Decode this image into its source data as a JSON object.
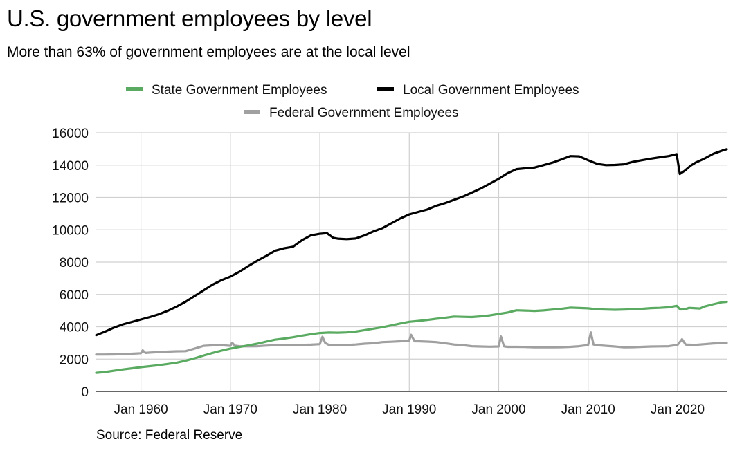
{
  "chart_data": {
    "type": "line",
    "title": "U.S. government employees by level",
    "subtitle": "More than 63% of government employees are at the local level",
    "source": "Source: Federal Reserve",
    "xlabel": "",
    "ylabel": "",
    "xlim": [
      1955.0,
      2025.5
    ],
    "ylim": [
      0,
      16000
    ],
    "yticks": [
      0,
      2000,
      4000,
      6000,
      8000,
      10000,
      12000,
      14000,
      16000
    ],
    "xticks": [
      {
        "value": 1960,
        "label": "Jan 1960"
      },
      {
        "value": 1970,
        "label": "Jan 1970"
      },
      {
        "value": 1980,
        "label": "Jan 1980"
      },
      {
        "value": 1990,
        "label": "Jan 1990"
      },
      {
        "value": 2000,
        "label": "Jan 2000"
      },
      {
        "value": 2010,
        "label": "Jan 2010"
      },
      {
        "value": 2020,
        "label": "Jan 2020"
      }
    ],
    "grid": true,
    "legend_position": "top-center",
    "series": [
      {
        "name": "State Government Employees",
        "color": "#5aab61",
        "points": [
          [
            1955.0,
            1150
          ],
          [
            1956,
            1200
          ],
          [
            1957,
            1280
          ],
          [
            1958,
            1360
          ],
          [
            1959,
            1430
          ],
          [
            1960,
            1500
          ],
          [
            1961,
            1560
          ],
          [
            1962,
            1620
          ],
          [
            1963,
            1700
          ],
          [
            1964,
            1780
          ],
          [
            1965,
            1900
          ],
          [
            1966,
            2050
          ],
          [
            1967,
            2220
          ],
          [
            1968,
            2380
          ],
          [
            1969,
            2520
          ],
          [
            1970,
            2650
          ],
          [
            1971,
            2750
          ],
          [
            1972,
            2850
          ],
          [
            1973,
            2950
          ],
          [
            1974,
            3080
          ],
          [
            1975,
            3200
          ],
          [
            1976,
            3270
          ],
          [
            1977,
            3350
          ],
          [
            1978,
            3450
          ],
          [
            1979,
            3540
          ],
          [
            1980,
            3610
          ],
          [
            1981,
            3640
          ],
          [
            1982,
            3630
          ],
          [
            1983,
            3650
          ],
          [
            1984,
            3700
          ],
          [
            1985,
            3790
          ],
          [
            1986,
            3880
          ],
          [
            1987,
            3970
          ],
          [
            1988,
            4080
          ],
          [
            1989,
            4200
          ],
          [
            1990,
            4310
          ],
          [
            1991,
            4360
          ],
          [
            1992,
            4420
          ],
          [
            1993,
            4490
          ],
          [
            1994,
            4550
          ],
          [
            1995,
            4630
          ],
          [
            1996,
            4610
          ],
          [
            1997,
            4600
          ],
          [
            1998,
            4640
          ],
          [
            1999,
            4700
          ],
          [
            2000,
            4790
          ],
          [
            2001,
            4880
          ],
          [
            2002,
            5020
          ],
          [
            2003,
            5000
          ],
          [
            2004,
            4980
          ],
          [
            2005,
            5010
          ],
          [
            2006,
            5060
          ],
          [
            2007,
            5110
          ],
          [
            2008,
            5180
          ],
          [
            2009,
            5160
          ],
          [
            2010,
            5140
          ],
          [
            2011,
            5080
          ],
          [
            2012,
            5060
          ],
          [
            2013,
            5050
          ],
          [
            2014,
            5060
          ],
          [
            2015,
            5080
          ],
          [
            2016,
            5110
          ],
          [
            2017,
            5150
          ],
          [
            2018,
            5170
          ],
          [
            2019,
            5200
          ],
          [
            2019.9,
            5290
          ],
          [
            2020.3,
            5070
          ],
          [
            2020.8,
            5080
          ],
          [
            2021.3,
            5170
          ],
          [
            2021.8,
            5150
          ],
          [
            2022.5,
            5130
          ],
          [
            2023,
            5250
          ],
          [
            2024,
            5390
          ],
          [
            2025,
            5520
          ],
          [
            2025.5,
            5540
          ]
        ]
      },
      {
        "name": "Local Government Employees",
        "color": "#000000",
        "points": [
          [
            1955.0,
            3480
          ],
          [
            1956,
            3700
          ],
          [
            1957,
            3950
          ],
          [
            1958,
            4150
          ],
          [
            1959,
            4300
          ],
          [
            1960,
            4450
          ],
          [
            1961,
            4600
          ],
          [
            1962,
            4770
          ],
          [
            1963,
            4990
          ],
          [
            1964,
            5250
          ],
          [
            1965,
            5550
          ],
          [
            1966,
            5900
          ],
          [
            1967,
            6250
          ],
          [
            1968,
            6600
          ],
          [
            1969,
            6880
          ],
          [
            1970,
            7100
          ],
          [
            1971,
            7400
          ],
          [
            1972,
            7750
          ],
          [
            1973,
            8080
          ],
          [
            1974,
            8380
          ],
          [
            1975,
            8700
          ],
          [
            1976,
            8850
          ],
          [
            1977,
            8950
          ],
          [
            1978,
            9350
          ],
          [
            1979,
            9650
          ],
          [
            1980,
            9750
          ],
          [
            1980.8,
            9790
          ],
          [
            1981.5,
            9500
          ],
          [
            1982,
            9450
          ],
          [
            1983,
            9420
          ],
          [
            1984,
            9460
          ],
          [
            1985,
            9650
          ],
          [
            1986,
            9900
          ],
          [
            1987,
            10100
          ],
          [
            1988,
            10400
          ],
          [
            1989,
            10700
          ],
          [
            1990,
            10950
          ],
          [
            1991,
            11100
          ],
          [
            1992,
            11250
          ],
          [
            1993,
            11480
          ],
          [
            1994,
            11650
          ],
          [
            1995,
            11850
          ],
          [
            1996,
            12050
          ],
          [
            1997,
            12300
          ],
          [
            1998,
            12550
          ],
          [
            1999,
            12850
          ],
          [
            2000,
            13150
          ],
          [
            2001,
            13500
          ],
          [
            2002,
            13750
          ],
          [
            2003,
            13800
          ],
          [
            2004,
            13850
          ],
          [
            2005,
            14000
          ],
          [
            2006,
            14150
          ],
          [
            2007,
            14350
          ],
          [
            2008,
            14560
          ],
          [
            2009,
            14540
          ],
          [
            2010,
            14300
          ],
          [
            2011,
            14080
          ],
          [
            2012,
            14000
          ],
          [
            2013,
            14010
          ],
          [
            2014,
            14050
          ],
          [
            2015,
            14200
          ],
          [
            2016,
            14300
          ],
          [
            2017,
            14400
          ],
          [
            2018,
            14480
          ],
          [
            2019,
            14560
          ],
          [
            2019.9,
            14680
          ],
          [
            2020.25,
            13450
          ],
          [
            2020.8,
            13650
          ],
          [
            2021.5,
            13980
          ],
          [
            2022,
            14150
          ],
          [
            2023,
            14400
          ],
          [
            2024,
            14700
          ],
          [
            2025,
            14900
          ],
          [
            2025.5,
            14980
          ]
        ]
      },
      {
        "name": "Federal Government Employees",
        "color": "#a0a0a0",
        "points": [
          [
            1955.0,
            2280
          ],
          [
            1956,
            2280
          ],
          [
            1957,
            2290
          ],
          [
            1958,
            2300
          ],
          [
            1959,
            2330
          ],
          [
            1960,
            2360
          ],
          [
            1960.2,
            2540
          ],
          [
            1960.5,
            2380
          ],
          [
            1961,
            2400
          ],
          [
            1962,
            2430
          ],
          [
            1963,
            2460
          ],
          [
            1964,
            2480
          ],
          [
            1965,
            2490
          ],
          [
            1966,
            2650
          ],
          [
            1967,
            2820
          ],
          [
            1968,
            2850
          ],
          [
            1969,
            2860
          ],
          [
            1970,
            2820
          ],
          [
            1970.2,
            3010
          ],
          [
            1970.5,
            2830
          ],
          [
            1971,
            2800
          ],
          [
            1972,
            2790
          ],
          [
            1973,
            2800
          ],
          [
            1974,
            2830
          ],
          [
            1975,
            2860
          ],
          [
            1976,
            2860
          ],
          [
            1977,
            2860
          ],
          [
            1978,
            2880
          ],
          [
            1979,
            2890
          ],
          [
            1980,
            2920
          ],
          [
            1980.3,
            3380
          ],
          [
            1980.6,
            3000
          ],
          [
            1981,
            2880
          ],
          [
            1982,
            2860
          ],
          [
            1983,
            2870
          ],
          [
            1984,
            2900
          ],
          [
            1985,
            2950
          ],
          [
            1986,
            2980
          ],
          [
            1987,
            3050
          ],
          [
            1988,
            3070
          ],
          [
            1989,
            3100
          ],
          [
            1990,
            3150
          ],
          [
            1990.2,
            3500
          ],
          [
            1990.6,
            3100
          ],
          [
            1991,
            3100
          ],
          [
            1992,
            3080
          ],
          [
            1993,
            3050
          ],
          [
            1994,
            2980
          ],
          [
            1995,
            2900
          ],
          [
            1996,
            2860
          ],
          [
            1997,
            2800
          ],
          [
            1998,
            2780
          ],
          [
            1999,
            2770
          ],
          [
            2000,
            2780
          ],
          [
            2000.25,
            3400
          ],
          [
            2000.6,
            2790
          ],
          [
            2001,
            2760
          ],
          [
            2002,
            2760
          ],
          [
            2003,
            2750
          ],
          [
            2004,
            2730
          ],
          [
            2005,
            2730
          ],
          [
            2006,
            2730
          ],
          [
            2007,
            2740
          ],
          [
            2008,
            2760
          ],
          [
            2009,
            2800
          ],
          [
            2010,
            2870
          ],
          [
            2010.3,
            3650
          ],
          [
            2010.6,
            2900
          ],
          [
            2011,
            2860
          ],
          [
            2012,
            2820
          ],
          [
            2013,
            2780
          ],
          [
            2014,
            2730
          ],
          [
            2015,
            2740
          ],
          [
            2016,
            2760
          ],
          [
            2017,
            2780
          ],
          [
            2018,
            2790
          ],
          [
            2019,
            2800
          ],
          [
            2020,
            2880
          ],
          [
            2020.5,
            3230
          ],
          [
            2020.9,
            2900
          ],
          [
            2021,
            2890
          ],
          [
            2022,
            2880
          ],
          [
            2023,
            2920
          ],
          [
            2024,
            2970
          ],
          [
            2025,
            2990
          ],
          [
            2025.5,
            3000
          ]
        ]
      }
    ]
  }
}
